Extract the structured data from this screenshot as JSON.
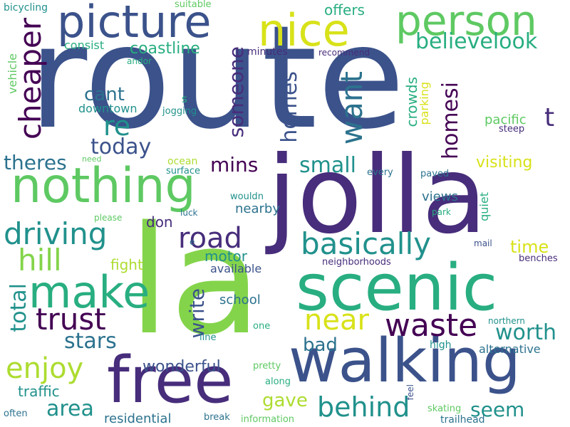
{
  "colors": {
    "background": "#ffffff",
    "palette": [
      "#440154",
      "#472d7b",
      "#3b528b",
      "#2c728e",
      "#21918c",
      "#28ae80",
      "#5ec962",
      "#addc30",
      "#fde725"
    ]
  },
  "words": [
    {
      "text": "route",
      "color": "#3b528b",
      "orientation": "horizontal"
    },
    {
      "text": "la",
      "color": "#84d44b",
      "orientation": "horizontal"
    },
    {
      "text": "jolla",
      "color": "#472d7b",
      "orientation": "horizontal"
    },
    {
      "text": "walking",
      "color": "#3b528b",
      "orientation": "horizontal"
    },
    {
      "text": "scenic",
      "color": "#28ae80",
      "orientation": "horizontal"
    },
    {
      "text": "free",
      "color": "#472d7b",
      "orientation": "horizontal"
    },
    {
      "text": "picture",
      "color": "#3b528b",
      "orientation": "horizontal"
    },
    {
      "text": "nothing",
      "color": "#5ec962",
      "orientation": "horizontal"
    },
    {
      "text": "person",
      "color": "#5ec962",
      "orientation": "horizontal"
    },
    {
      "text": "nice",
      "color": "#d8e219",
      "orientation": "horizontal"
    },
    {
      "text": "make",
      "color": "#28ae80",
      "orientation": "horizontal"
    },
    {
      "text": "driving",
      "color": "#21918c",
      "orientation": "horizontal"
    },
    {
      "text": "basically",
      "color": "#21918c",
      "orientation": "horizontal"
    },
    {
      "text": "trust",
      "color": "#440154",
      "orientation": "horizontal"
    },
    {
      "text": "waste",
      "color": "#440154",
      "orientation": "horizontal"
    },
    {
      "text": "behind",
      "color": "#21918c",
      "orientation": "horizontal"
    },
    {
      "text": "road",
      "color": "#472d7b",
      "orientation": "horizontal"
    },
    {
      "text": "hill",
      "color": "#84d44b",
      "orientation": "horizontal"
    },
    {
      "text": "enjoy",
      "color": "#addc30",
      "orientation": "horizontal"
    },
    {
      "text": "near",
      "color": "#d8e219",
      "orientation": "horizontal"
    },
    {
      "text": "re",
      "color": "#21918c",
      "orientation": "horizontal"
    },
    {
      "text": "cheaper",
      "color": "#440154",
      "orientation": "vertical"
    },
    {
      "text": "want",
      "color": "#2c728e",
      "orientation": "vertical"
    },
    {
      "text": "believelook",
      "color": "#28ae80",
      "orientation": "horizontal"
    },
    {
      "text": "worth",
      "color": "#21918c",
      "orientation": "horizontal"
    },
    {
      "text": "stars",
      "color": "#2c728e",
      "orientation": "horizontal"
    },
    {
      "text": "area",
      "color": "#21918c",
      "orientation": "horizontal"
    },
    {
      "text": "seem",
      "color": "#21918c",
      "orientation": "horizontal"
    },
    {
      "text": "small",
      "color": "#21918c",
      "orientation": "horizontal"
    },
    {
      "text": "theres",
      "color": "#2c728e",
      "orientation": "horizontal"
    },
    {
      "text": "today",
      "color": "#3b528b",
      "orientation": "horizontal"
    },
    {
      "text": "cant",
      "color": "#2c728e",
      "orientation": "horizontal"
    },
    {
      "text": "mins",
      "color": "#440154",
      "orientation": "horizontal"
    },
    {
      "text": "someone",
      "color": "#472d7b",
      "orientation": "vertical"
    },
    {
      "text": "homes",
      "color": "#3b528b",
      "orientation": "vertical"
    },
    {
      "text": "homesi",
      "color": "#440154",
      "orientation": "vertical"
    },
    {
      "text": "t",
      "color": "#472d7b",
      "orientation": "horizontal"
    },
    {
      "text": "total",
      "color": "#21918c",
      "orientation": "vertical"
    },
    {
      "text": "write",
      "color": "#3b528b",
      "orientation": "vertical"
    },
    {
      "text": "time",
      "color": "#d8e219",
      "orientation": "horizontal"
    },
    {
      "text": "gave",
      "color": "#addc30",
      "orientation": "horizontal"
    },
    {
      "text": "bad",
      "color": "#2c728e",
      "orientation": "horizontal"
    },
    {
      "text": "wonderful",
      "color": "#3b528b",
      "orientation": "horizontal"
    },
    {
      "text": "traffic",
      "color": "#21918c",
      "orientation": "horizontal"
    },
    {
      "text": "coastline",
      "color": "#28ae80",
      "orientation": "horizontal"
    },
    {
      "text": "visiting",
      "color": "#d8e219",
      "orientation": "horizontal"
    },
    {
      "text": "offers",
      "color": "#28ae80",
      "orientation": "horizontal"
    },
    {
      "text": "crowds",
      "color": "#28ae80",
      "orientation": "vertical"
    },
    {
      "text": "don",
      "color": "#472d7b",
      "orientation": "horizontal"
    },
    {
      "text": "fight",
      "color": "#addc30",
      "orientation": "horizontal"
    },
    {
      "text": "motor",
      "color": "#21918c",
      "orientation": "horizontal"
    },
    {
      "text": "available",
      "color": "#3b528b",
      "orientation": "horizontal"
    },
    {
      "text": "residential",
      "color": "#2c728e",
      "orientation": "horizontal"
    },
    {
      "text": "views",
      "color": "#2c728e",
      "orientation": "horizontal"
    },
    {
      "text": "nearby",
      "color": "#2c728e",
      "orientation": "horizontal"
    },
    {
      "text": "school",
      "color": "#2c728e",
      "orientation": "horizontal"
    },
    {
      "text": "downtown",
      "color": "#21918c",
      "orientation": "horizontal"
    },
    {
      "text": "consist",
      "color": "#28ae80",
      "orientation": "horizontal"
    },
    {
      "text": "minutes",
      "color": "#472d7b",
      "orientation": "horizontal"
    },
    {
      "text": "pacific",
      "color": "#5ec962",
      "orientation": "horizontal"
    },
    {
      "text": "alternative",
      "color": "#2c728e",
      "orientation": "horizontal"
    },
    {
      "text": "quiet",
      "color": "#28ae80",
      "orientation": "vertical"
    },
    {
      "text": "parking",
      "color": "#d8e219",
      "orientation": "vertical"
    },
    {
      "text": "vehicle",
      "color": "#5ec962",
      "orientation": "vertical"
    },
    {
      "text": "neighborhoods",
      "color": "#472d7b",
      "orientation": "horizontal"
    },
    {
      "text": "bicycling",
      "color": "#21918c",
      "orientation": "horizontal"
    },
    {
      "text": "suitable",
      "color": "#5ec962",
      "orientation": "horizontal"
    },
    {
      "text": "recommend",
      "color": "#472d7b",
      "orientation": "horizontal"
    },
    {
      "text": "andor",
      "color": "#28ae80",
      "orientation": "horizontal"
    },
    {
      "text": "jogging",
      "color": "#21918c",
      "orientation": "horizontal"
    },
    {
      "text": "steep",
      "color": "#472d7b",
      "orientation": "horizontal"
    },
    {
      "text": "s",
      "color": "#28ae80",
      "orientation": "horizontal"
    },
    {
      "text": "ocean",
      "color": "#addc30",
      "orientation": "horizontal"
    },
    {
      "text": "surface",
      "color": "#21918c",
      "orientation": "horizontal"
    },
    {
      "text": "need",
      "color": "#5ec962",
      "orientation": "horizontal"
    },
    {
      "text": "every",
      "color": "#2c728e",
      "orientation": "horizontal"
    },
    {
      "text": "paved",
      "color": "#2c728e",
      "orientation": "horizontal"
    },
    {
      "text": "wouldn",
      "color": "#21918c",
      "orientation": "horizontal"
    },
    {
      "text": "park",
      "color": "#28ae80",
      "orientation": "horizontal"
    },
    {
      "text": "please",
      "color": "#5ec962",
      "orientation": "horizontal"
    },
    {
      "text": "luck",
      "color": "#2c728e",
      "orientation": "horizontal"
    },
    {
      "text": "mail",
      "color": "#3b528b",
      "orientation": "horizontal"
    },
    {
      "text": "e",
      "color": "#2c728e",
      "orientation": "horizontal"
    },
    {
      "text": "benches",
      "color": "#472d7b",
      "orientation": "horizontal"
    },
    {
      "text": "one",
      "color": "#28ae80",
      "orientation": "horizontal"
    },
    {
      "text": "northern",
      "color": "#21918c",
      "orientation": "horizontal"
    },
    {
      "text": "line",
      "color": "#21918c",
      "orientation": "horizontal"
    },
    {
      "text": "high",
      "color": "#21918c",
      "orientation": "horizontal"
    },
    {
      "text": "pretty",
      "color": "#5ec962",
      "orientation": "horizontal"
    },
    {
      "text": "along",
      "color": "#28ae80",
      "orientation": "horizontal"
    },
    {
      "text": "feel",
      "color": "#3b528b",
      "orientation": "vertical"
    },
    {
      "text": "often",
      "color": "#2c728e",
      "orientation": "horizontal"
    },
    {
      "text": "break",
      "color": "#2c728e",
      "orientation": "horizontal"
    },
    {
      "text": "information",
      "color": "#5ec962",
      "orientation": "horizontal"
    },
    {
      "text": "skating",
      "color": "#5ec962",
      "orientation": "horizontal"
    },
    {
      "text": "trailhead",
      "color": "#2c728e",
      "orientation": "horizontal"
    }
  ]
}
